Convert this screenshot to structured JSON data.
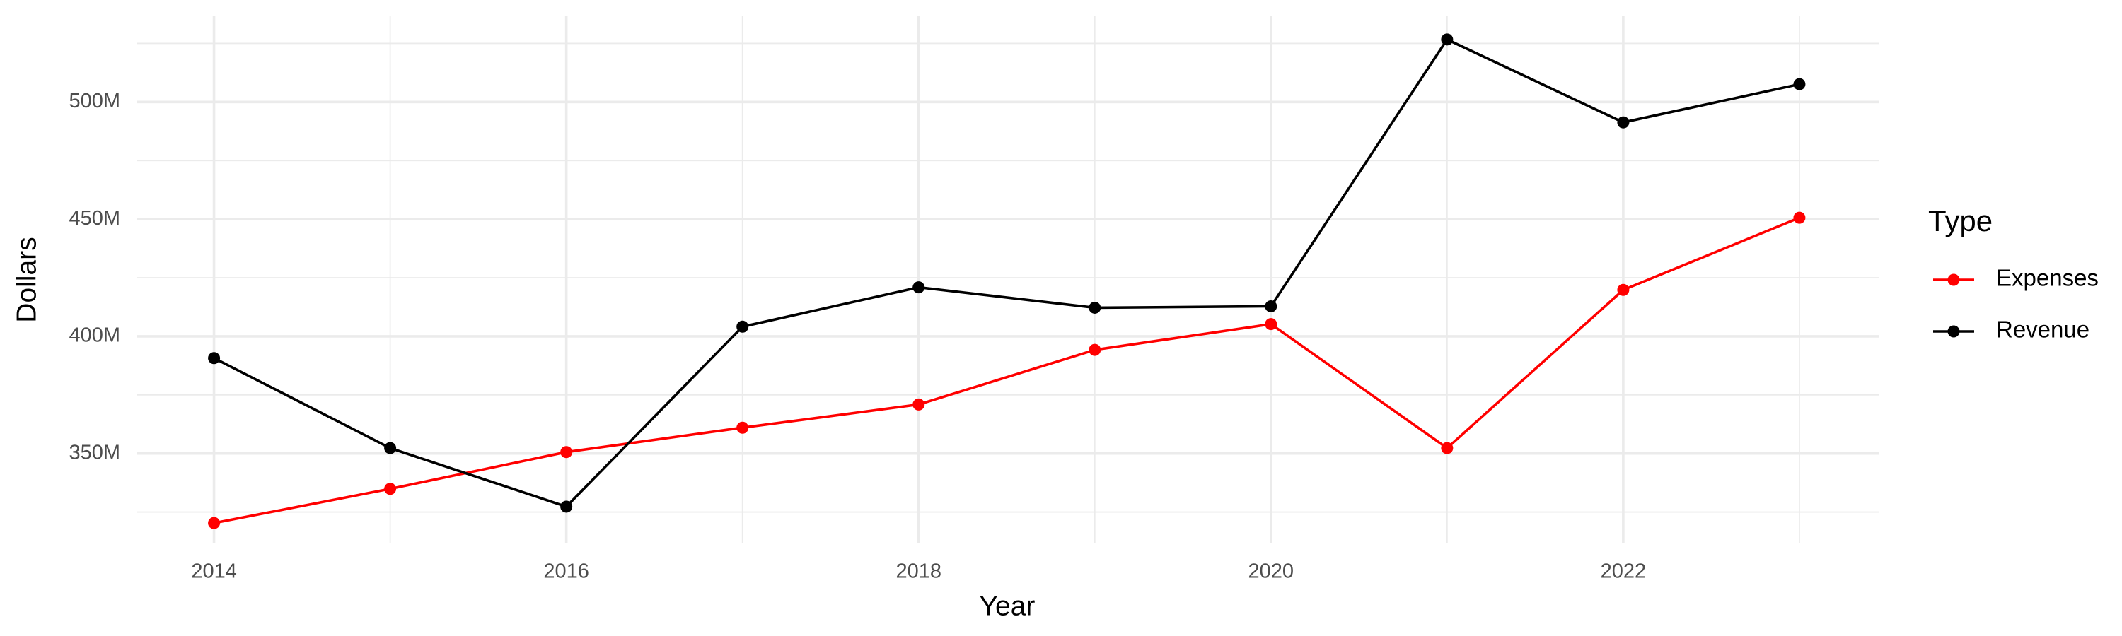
{
  "chart_data": {
    "type": "line",
    "x_label": "Year",
    "y_label": "Dollars",
    "legend_title": "Type",
    "legend_position": "right",
    "grid": true,
    "x": [
      2014,
      2015,
      2016,
      2017,
      2018,
      2019,
      2020,
      2021,
      2022,
      2023
    ],
    "series": [
      {
        "name": "Expenses",
        "color": "#ff0000",
        "values": [
          320300000,
          334900000,
          350600000,
          361000000,
          370900000,
          394200000,
          405200000,
          352300000,
          419800000,
          450600000
        ]
      },
      {
        "name": "Revenue",
        "color": "#000000",
        "values": [
          390700000,
          352300000,
          327300000,
          404100000,
          420900000,
          412200000,
          412800000,
          526700000,
          491300000,
          507600000
        ]
      }
    ],
    "xlim": [
      2013.56,
      2023.45
    ],
    "ylim": [
      311600000,
      536600000
    ],
    "xticks": [
      2014,
      2016,
      2018,
      2020,
      2022
    ],
    "yticks": [
      {
        "value": 350000000,
        "label": "350M"
      },
      {
        "value": 400000000,
        "label": "400M"
      },
      {
        "value": 450000000,
        "label": "450M"
      },
      {
        "value": 500000000,
        "label": "500M"
      }
    ]
  }
}
